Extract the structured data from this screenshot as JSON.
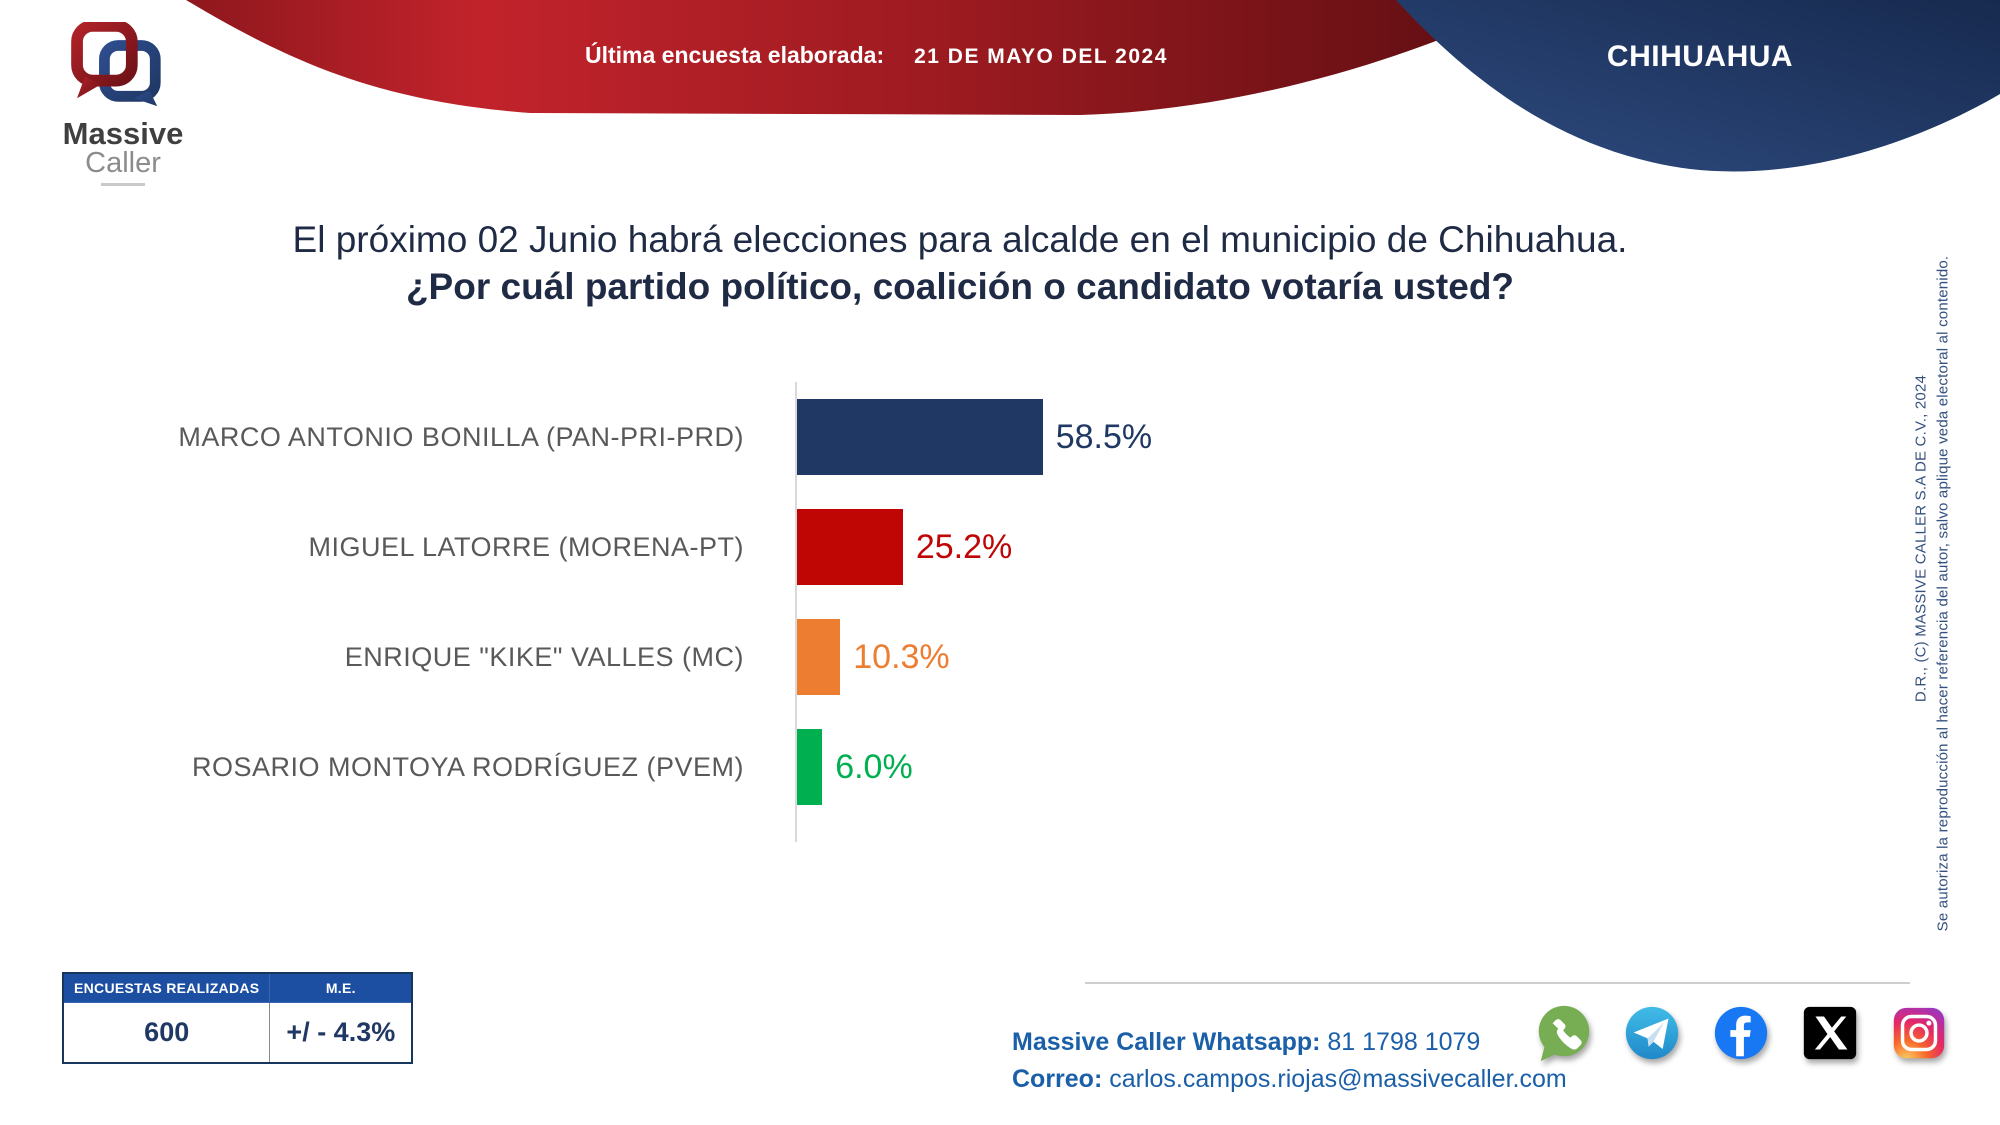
{
  "header": {
    "banner_label": "Última encuesta elaborada:",
    "banner_date": "21 DE MAYO DEL 2024",
    "region": "CHIHUAHUA",
    "logo": {
      "brand_top": "Massive",
      "brand_bottom": "Caller"
    }
  },
  "question": {
    "line1": "El próximo 02 Junio habrá elecciones para alcalde en el municipio de Chihuahua.",
    "line2": "¿Por cuál partido político, coalición o candidato votaría usted?"
  },
  "chart_data": {
    "type": "bar",
    "orientation": "horizontal",
    "categories": [
      "MARCO ANTONIO BONILLA (PAN-PRI-PRD)",
      "MIGUEL LATORRE (MORENA-PT)",
      "ENRIQUE \"KIKE\" VALLES (MC)",
      "ROSARIO MONTOYA RODRÍGUEZ (PVEM)"
    ],
    "values": [
      58.5,
      25.2,
      10.3,
      6.0
    ],
    "value_labels": [
      "58.5%",
      "25.2%",
      "10.3%",
      "6.0%"
    ],
    "bar_colors": [
      "#1F3864",
      "#C00505",
      "#ED7D31",
      "#00B050"
    ],
    "xlim": [
      0,
      100
    ],
    "grid": false,
    "legend": "none",
    "title": ""
  },
  "stats_table": {
    "headers": [
      "ENCUESTAS REALIZADAS",
      "M.E."
    ],
    "values": [
      "600",
      "+/ - 4.3%"
    ]
  },
  "contact": {
    "whatsapp_label": "Massive Caller Whatsapp:",
    "whatsapp_number": "81 1798 1079",
    "email_label": "Correo:",
    "email": "carlos.campos.riojas@massivecaller.com"
  },
  "social_icons": [
    "whatsapp",
    "telegram",
    "facebook",
    "x",
    "instagram"
  ],
  "legal": {
    "line1": "D.R., (C) MASSIVE CALLER S.A DE C.V., 2024",
    "line2": "Se autoriza la reproducción al hacer referencia del autor, salvo aplique veda electoral al contenido."
  },
  "colors": {
    "ribbon_red": "#A91C23",
    "ribbon_navy": "#1F3461",
    "question_text": "#1F2A44",
    "category_label": "#595959",
    "table_header_bg": "#1C4FA1",
    "contact_blue": "#1A5FA8",
    "axis_gray": "#D9D9D9"
  }
}
